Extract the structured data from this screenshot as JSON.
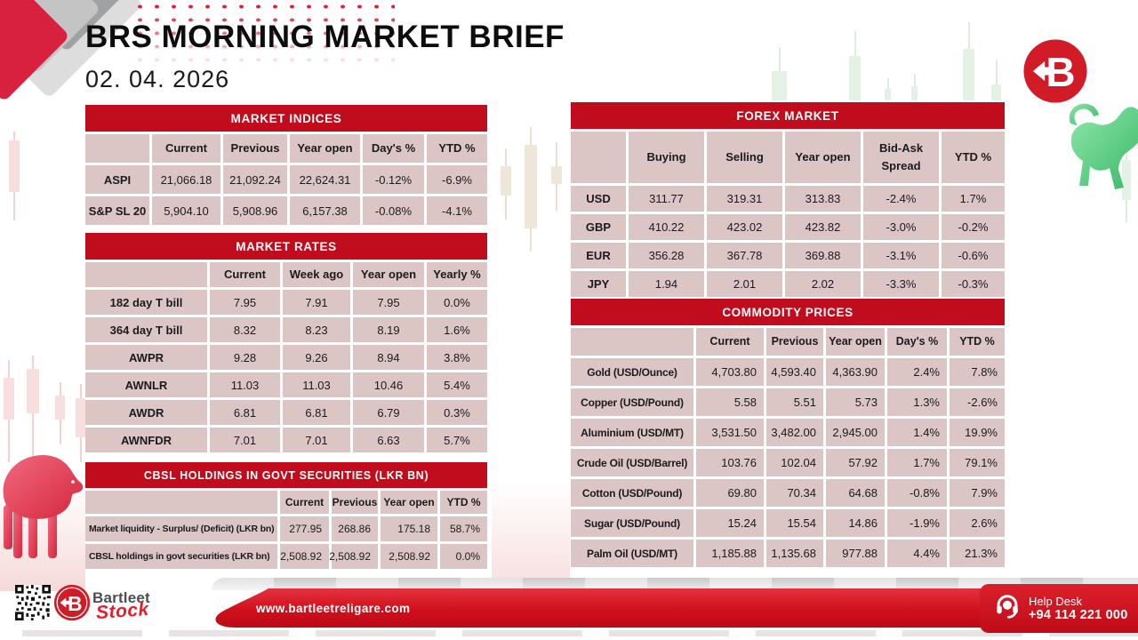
{
  "page": {
    "title": "BRS MORNING MARKET BRIEF",
    "date": "02. 04. 2026"
  },
  "tables": {
    "market_indices": {
      "title": "MARKET INDICES",
      "headers": [
        "",
        "Current",
        "Previous",
        "Year open",
        "Day's %",
        "YTD %"
      ],
      "rows": [
        {
          "label": "ASPI",
          "values": [
            "21,066.18",
            "21,092.24",
            "22,624.31",
            "-0.12%",
            "-6.9%"
          ]
        },
        {
          "label": "S&P SL 20",
          "values": [
            "5,904.10",
            "5,908.96",
            "6,157.38",
            "-0.08%",
            "-4.1%"
          ]
        }
      ]
    },
    "market_rates": {
      "title": "MARKET RATES",
      "headers": [
        "",
        "Current",
        "Week ago",
        "Year open",
        "Yearly %"
      ],
      "rows": [
        {
          "label": "182 day T bill",
          "values": [
            "7.95",
            "7.91",
            "7.95",
            "0.0%"
          ]
        },
        {
          "label": "364 day T bill",
          "values": [
            "8.32",
            "8.23",
            "8.19",
            "1.6%"
          ]
        },
        {
          "label": "AWPR",
          "values": [
            "9.28",
            "9.26",
            "8.94",
            "3.8%"
          ]
        },
        {
          "label": "AWNLR",
          "values": [
            "11.03",
            "11.03",
            "10.46",
            "5.4%"
          ]
        },
        {
          "label": "AWDR",
          "values": [
            "6.81",
            "6.81",
            "6.79",
            "0.3%"
          ]
        },
        {
          "label": "AWNFDR",
          "values": [
            "7.01",
            "7.01",
            "6.63",
            "5.7%"
          ]
        }
      ]
    },
    "cbsl_holdings": {
      "title": "CBSL HOLDINGS IN GOVT SECURITIES (LKR BN)",
      "headers": [
        "",
        "Current",
        "Previous",
        "Year open",
        "YTD %"
      ],
      "rows": [
        {
          "label": "Market liquidity - Surplus/ (Deficit) (LKR bn)",
          "values": [
            "277.95",
            "268.86",
            "175.18",
            "58.7%"
          ]
        },
        {
          "label": "CBSL holdings in govt securities (LKR bn)",
          "values": [
            "2,508.92",
            "2,508.92",
            "2,508.92",
            "0.0%"
          ]
        }
      ]
    },
    "forex_market": {
      "title": "FOREX MARKET",
      "headers": [
        "",
        "Buying",
        "Selling",
        "Year open",
        "Bid-Ask Spread",
        "YTD %"
      ],
      "rows": [
        {
          "label": "USD",
          "values": [
            "311.77",
            "319.31",
            "313.83",
            "-2.4%",
            "1.7%"
          ]
        },
        {
          "label": "GBP",
          "values": [
            "410.22",
            "423.02",
            "423.82",
            "-3.0%",
            "-0.2%"
          ]
        },
        {
          "label": "EUR",
          "values": [
            "356.28",
            "367.78",
            "369.88",
            "-3.1%",
            "-0.6%"
          ]
        },
        {
          "label": "JPY",
          "values": [
            "1.94",
            "2.01",
            "2.02",
            "-3.3%",
            "-0.3%"
          ]
        }
      ]
    },
    "commodity_prices": {
      "title": "COMMODITY PRICES",
      "headers": [
        "",
        "Current",
        "Previous",
        "Year open",
        "Day's %",
        "YTD %"
      ],
      "rows": [
        {
          "label": "Gold (USD/Ounce)",
          "values": [
            "4,703.80",
            "4,593.40",
            "4,363.90",
            "2.4%",
            "7.8%"
          ]
        },
        {
          "label": "Copper (USD/Pound)",
          "values": [
            "5.58",
            "5.51",
            "5.73",
            "1.3%",
            "-2.6%"
          ]
        },
        {
          "label": "Aluminium (USD/MT)",
          "values": [
            "3,531.50",
            "3,482.00",
            "2,945.00",
            "1.4%",
            "19.9%"
          ]
        },
        {
          "label": "Crude Oil (USD/Barrel)",
          "values": [
            "103.76",
            "102.04",
            "57.92",
            "1.7%",
            "79.1%"
          ]
        },
        {
          "label": "Cotton (USD/Pound)",
          "values": [
            "69.80",
            "70.34",
            "64.68",
            "-0.8%",
            "7.9%"
          ]
        },
        {
          "label": "Sugar (USD/Pound)",
          "values": [
            "15.24",
            "15.54",
            "14.86",
            "-1.9%",
            "2.6%"
          ]
        },
        {
          "label": "Palm Oil (USD/MT)",
          "values": [
            "1,185.88",
            "1,135.68",
            "977.88",
            "4.4%",
            "21.3%"
          ]
        }
      ]
    }
  },
  "footer": {
    "brand_name": "Bartleet",
    "brand_sub": "Stock",
    "website": "www.bartleetreligare.com",
    "help_desk_label": "Help Desk",
    "help_desk_phone": "+94 114 221 000"
  },
  "icons": {
    "brand_logo": "b-left-arrow-logo (red circle, white B with left arrow)",
    "help_desk": "headset-icon",
    "qr": "qr-code",
    "bull": "green-bull-graphic",
    "bear": "red-bear-graphic"
  },
  "colors": {
    "table_header_red": "#C00C1C",
    "cell_pink": "#DCC5C5",
    "ribbon_red": "#D0101C",
    "accent_crimson": "#D7213F",
    "bull_green": "#4FC579",
    "bear_red": "#E0394F"
  }
}
